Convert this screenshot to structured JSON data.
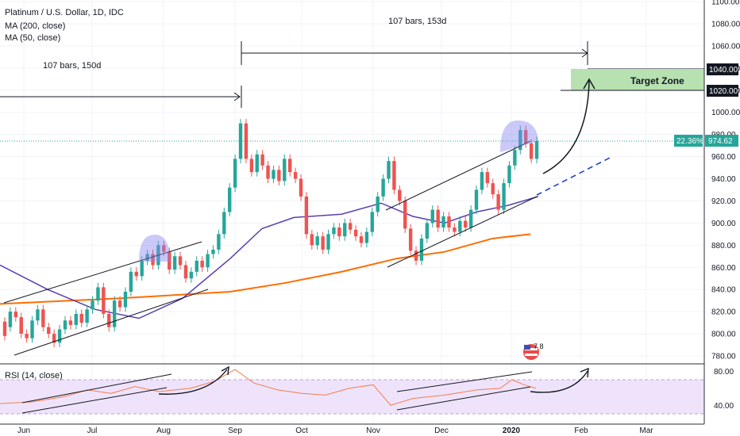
{
  "header": {
    "symbol": "Platinum / U.S. Dollar, 1D, IDC",
    "ma200": "MA (200, close)",
    "ma50": "MA (50, close)",
    "rsi": "RSI (14, close)"
  },
  "annotations": {
    "bars_label_left": "107 bars, 150d",
    "bars_label_right": "107 bars, 153d",
    "target_zone": "Target Zone"
  },
  "badges": {
    "price_pct": "22.36%",
    "price_value": "974.62",
    "marker_1040": "1040.00",
    "marker_1020": "1020.00",
    "logo_text": "7 8"
  },
  "colors": {
    "up": "#26a69a",
    "down": "#ef5350",
    "ma200": "#ff6d00",
    "ma50": "#5b3db1",
    "rsi_line": "#f57c4a",
    "rsi_band": "#efe3fb",
    "target_zone": "#b7e1b0",
    "projection": "#1e3fd0",
    "highlight": "#8b87f0"
  },
  "chart_data": {
    "type": "candlestick",
    "price_axis": {
      "ticks": [
        "1100.00",
        "1080.00",
        "1060.00",
        "1040.00",
        "1020.00",
        "1000.00",
        "980.00",
        "960.00",
        "940.00",
        "920.00",
        "900.00",
        "880.00",
        "860.00",
        "840.00",
        "820.00",
        "800.00",
        "780.00"
      ],
      "range": [
        770,
        1105
      ]
    },
    "rsi_axis": {
      "ticks": [
        "80.00",
        "40.00"
      ],
      "range": [
        20,
        90
      ],
      "upper_band": 70,
      "lower_band": 30
    },
    "time_axis": [
      "Jun",
      "Jul",
      "Aug",
      "Sep",
      "Oct",
      "Nov",
      "Dec",
      "2020",
      "Feb",
      "Mar"
    ],
    "ohlc_close_approx": [
      [
        811,
        798
      ],
      [
        806,
        820
      ],
      [
        820,
        815
      ],
      [
        815,
        800
      ],
      [
        800,
        796
      ],
      [
        796,
        812
      ],
      [
        812,
        822
      ],
      [
        822,
        806
      ],
      [
        806,
        800
      ],
      [
        800,
        792
      ],
      [
        792,
        804
      ],
      [
        804,
        812
      ],
      [
        812,
        808
      ],
      [
        808,
        818
      ],
      [
        818,
        810
      ],
      [
        810,
        822
      ],
      [
        822,
        830
      ],
      [
        830,
        842
      ],
      [
        842,
        818
      ],
      [
        818,
        806
      ],
      [
        806,
        830
      ],
      [
        830,
        824
      ],
      [
        824,
        838
      ],
      [
        838,
        856
      ],
      [
        856,
        852
      ],
      [
        852,
        866
      ],
      [
        866,
        872
      ],
      [
        872,
        862
      ],
      [
        862,
        880
      ],
      [
        880,
        874
      ],
      [
        874,
        858
      ],
      [
        858,
        870
      ],
      [
        870,
        862
      ],
      [
        862,
        850
      ],
      [
        850,
        856
      ],
      [
        856,
        866
      ],
      [
        866,
        860
      ],
      [
        860,
        872
      ],
      [
        872,
        876
      ],
      [
        876,
        890
      ],
      [
        890,
        910
      ],
      [
        910,
        932
      ],
      [
        932,
        958
      ],
      [
        958,
        990
      ],
      [
        990,
        958
      ],
      [
        958,
        946
      ],
      [
        946,
        962
      ],
      [
        962,
        952
      ],
      [
        952,
        940
      ],
      [
        940,
        948
      ],
      [
        948,
        938
      ],
      [
        938,
        958
      ],
      [
        958,
        946
      ],
      [
        946,
        940
      ],
      [
        940,
        924
      ],
      [
        924,
        890
      ],
      [
        890,
        880
      ],
      [
        880,
        888
      ],
      [
        888,
        876
      ],
      [
        876,
        890
      ],
      [
        890,
        896
      ],
      [
        896,
        888
      ],
      [
        888,
        900
      ],
      [
        900,
        894
      ],
      [
        894,
        888
      ],
      [
        888,
        882
      ],
      [
        882,
        892
      ],
      [
        892,
        910
      ],
      [
        910,
        924
      ],
      [
        924,
        940
      ],
      [
        940,
        956
      ],
      [
        956,
        930
      ],
      [
        930,
        920
      ],
      [
        920,
        895
      ],
      [
        895,
        875
      ],
      [
        875,
        866
      ],
      [
        866,
        886
      ],
      [
        886,
        900
      ],
      [
        900,
        912
      ],
      [
        912,
        896
      ],
      [
        896,
        906
      ],
      [
        906,
        896
      ],
      [
        896,
        892
      ],
      [
        892,
        902
      ],
      [
        902,
        896
      ],
      [
        896,
        912
      ],
      [
        912,
        930
      ],
      [
        930,
        946
      ],
      [
        946,
        936
      ],
      [
        936,
        926
      ],
      [
        926,
        912
      ],
      [
        912,
        936
      ],
      [
        936,
        952
      ],
      [
        952,
        966
      ],
      [
        966,
        984
      ],
      [
        984,
        972
      ],
      [
        972,
        958
      ],
      [
        958,
        974
      ]
    ],
    "ma200_approx": [
      [
        0,
        827
      ],
      [
        150,
        832
      ],
      [
        290,
        838
      ],
      [
        360,
        846
      ],
      [
        430,
        856
      ],
      [
        500,
        868
      ],
      [
        560,
        874
      ],
      [
        620,
        886
      ],
      [
        668,
        890
      ]
    ],
    "ma50_approx": [
      [
        0,
        862
      ],
      [
        60,
        840
      ],
      [
        120,
        822
      ],
      [
        175,
        814
      ],
      [
        230,
        832
      ],
      [
        290,
        868
      ],
      [
        330,
        895
      ],
      [
        370,
        905
      ],
      [
        430,
        908
      ],
      [
        480,
        918
      ],
      [
        520,
        906
      ],
      [
        560,
        900
      ],
      [
        600,
        910
      ],
      [
        640,
        916
      ],
      [
        678,
        924
      ]
    ],
    "rsi_approx": [
      [
        0,
        42
      ],
      [
        40,
        44
      ],
      [
        80,
        50
      ],
      [
        110,
        58
      ],
      [
        140,
        54
      ],
      [
        170,
        62
      ],
      [
        200,
        56
      ],
      [
        240,
        60
      ],
      [
        270,
        68
      ],
      [
        296,
        82
      ],
      [
        320,
        66
      ],
      [
        350,
        58
      ],
      [
        380,
        54
      ],
      [
        410,
        52
      ],
      [
        440,
        60
      ],
      [
        470,
        64
      ],
      [
        492,
        40
      ],
      [
        520,
        48
      ],
      [
        560,
        52
      ],
      [
        600,
        58
      ],
      [
        630,
        60
      ],
      [
        645,
        70
      ],
      [
        660,
        64
      ],
      [
        675,
        60
      ]
    ]
  }
}
